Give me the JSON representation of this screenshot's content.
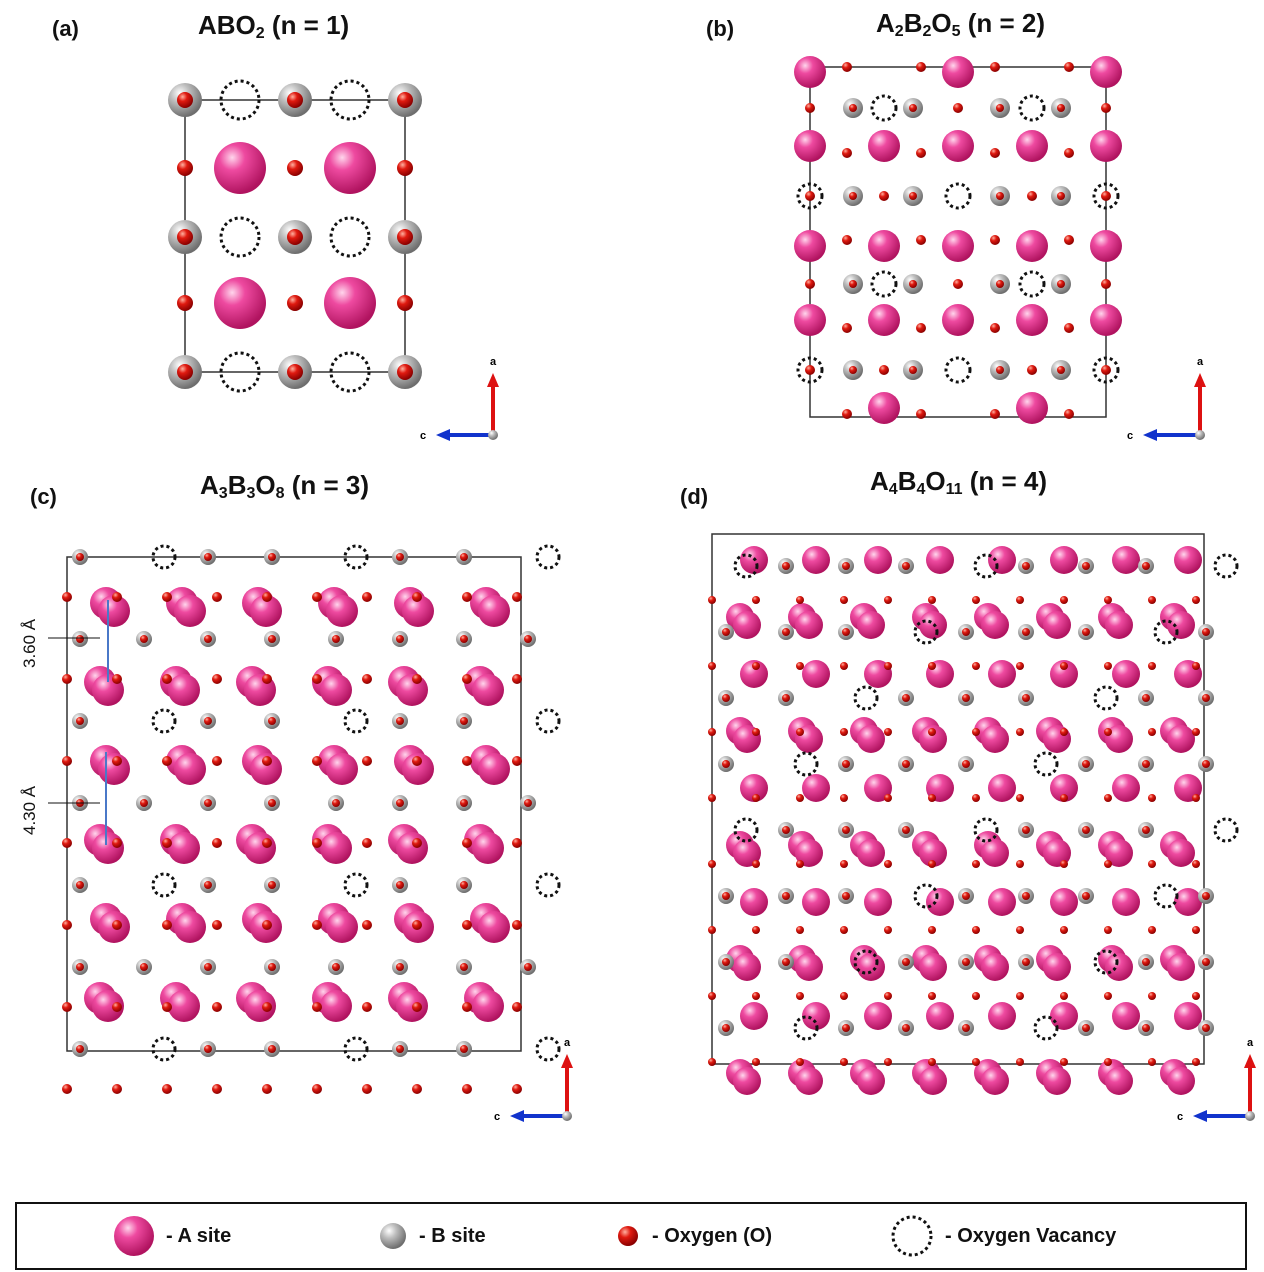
{
  "panels": {
    "a": {
      "label": "(a)",
      "title_main": "ABO",
      "title_sub1": "2",
      "title_rest": " (n = 1)"
    },
    "b": {
      "label": "(b)",
      "t1": "A",
      "s1": "2",
      "t2": "B",
      "s2": "2",
      "t3": "O",
      "s3": "5",
      "title_rest": " (n = 2)"
    },
    "c": {
      "label": "(c)",
      "t1": "A",
      "s1": "3",
      "t2": "B",
      "s2": "3",
      "t3": "O",
      "s3": "8",
      "title_rest": " (n = 3)"
    },
    "d": {
      "label": "(d)",
      "t1": "A",
      "s1": "4",
      "t2": "B",
      "s2": "4",
      "t3": "O",
      "s3": "11",
      "title_rest": " (n = 4)"
    }
  },
  "distances": {
    "upper": "3.60 Å",
    "lower": "4.30 Å"
  },
  "axes": {
    "a_label": "a",
    "c_label": "c"
  },
  "legend": {
    "a_site": "- A site",
    "b_site": "- B site",
    "oxygen": "- Oxygen (O)",
    "vacancy": "- Oxygen Vacancy"
  },
  "colors": {
    "a_site": "#e0308a",
    "b_site": "#a8a8a8",
    "oxygen": "#dd1111",
    "vacancy": "#111111",
    "axis_a": "#dd1111",
    "axis_c": "#1133cc",
    "arrow": "#4a78c8"
  }
}
